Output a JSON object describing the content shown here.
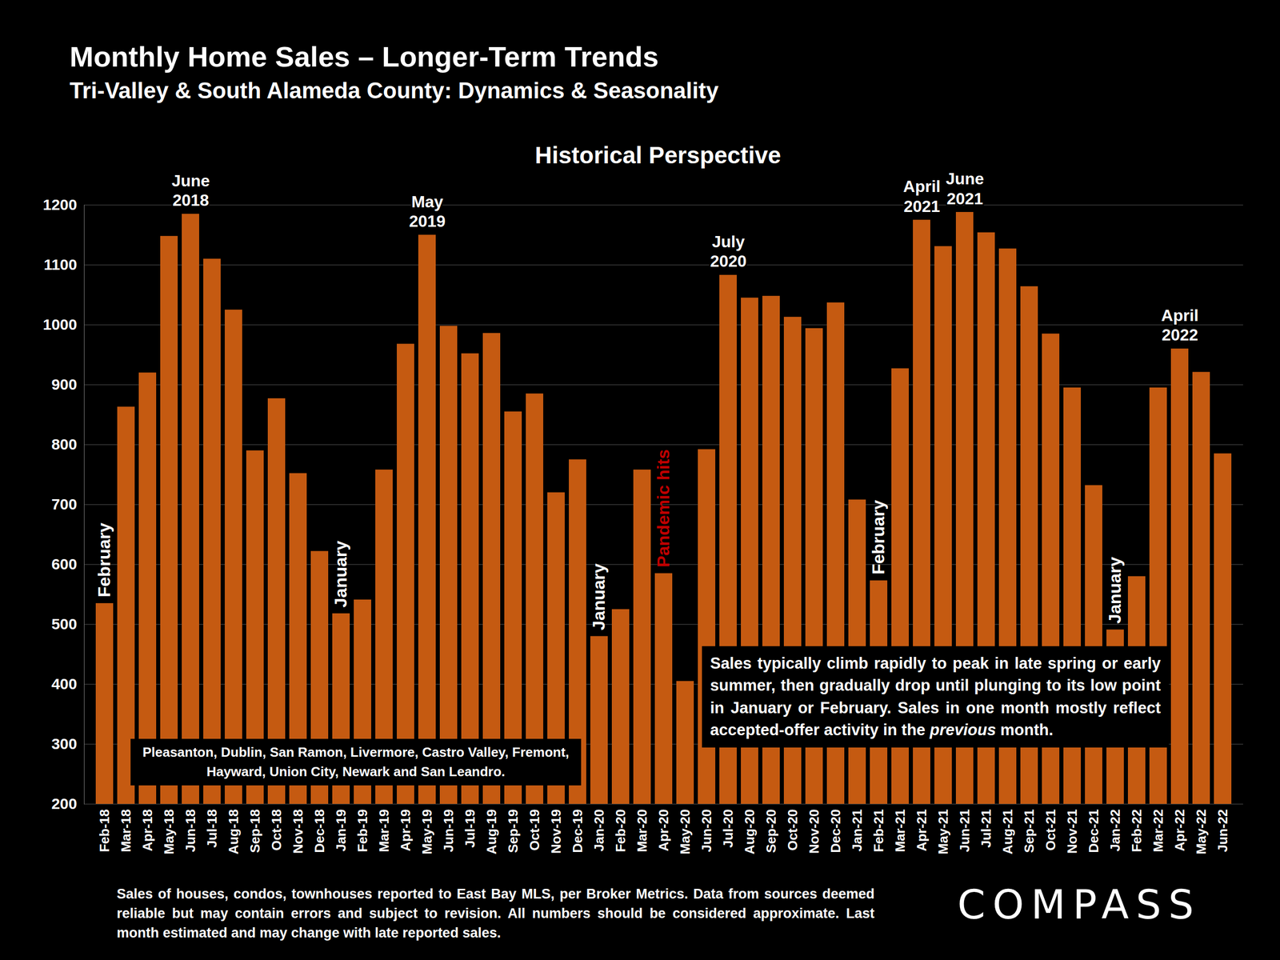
{
  "chart_data": {
    "type": "bar",
    "title": "Monthly Home Sales – Longer-Term Trends",
    "subtitle": "Tri-Valley & South Alameda County: Dynamics & Seasonality",
    "heading": "Historical Perspective",
    "categories": [
      "Feb-18",
      "Mar-18",
      "Apr-18",
      "May-18",
      "Jun-18",
      "Jul-18",
      "Aug-18",
      "Sep-18",
      "Oct-18",
      "Nov-18",
      "Dec-18",
      "Jan-19",
      "Feb-19",
      "Mar-19",
      "Apr-19",
      "May-19",
      "Jun-19",
      "Jul-19",
      "Aug-19",
      "Sep-19",
      "Oct-19",
      "Nov-19",
      "Dec-19",
      "Jan-20",
      "Feb-20",
      "Mar-20",
      "Apr-20",
      "May-20",
      "Jun-20",
      "Jul-20",
      "Aug-20",
      "Sep-20",
      "Oct-20",
      "Nov-20",
      "Dec-20",
      "Jan-21",
      "Feb-21",
      "Mar-21",
      "Apr-21",
      "May-21",
      "Jun-21",
      "Jul-21",
      "Aug-21",
      "Sep-21",
      "Oct-21",
      "Nov-21",
      "Dec-21",
      "Jan-22",
      "Feb-22",
      "Mar-22",
      "Apr-22",
      "May-22",
      "Jun-22"
    ],
    "values": [
      535,
      863,
      920,
      1148,
      1185,
      1110,
      1025,
      790,
      877,
      752,
      622,
      518,
      541,
      758,
      968,
      1150,
      998,
      952,
      986,
      855,
      885,
      720,
      775,
      480,
      525,
      758,
      585,
      405,
      792,
      1083,
      1045,
      1048,
      1013,
      994,
      1037,
      708,
      573,
      927,
      1175,
      1131,
      1188,
      1154,
      1127,
      1064,
      985,
      895,
      732,
      491,
      580,
      895,
      960,
      921,
      785
    ],
    "color": "#c55a11",
    "ylim": [
      200,
      1200
    ],
    "yticks": [
      200,
      300,
      400,
      500,
      600,
      700,
      800,
      900,
      1000,
      1100,
      1200
    ],
    "grid": true,
    "annotations": [
      {
        "text": "June\n2018",
        "category": "Jun-18"
      },
      {
        "text": "May\n2019",
        "category": "May-19"
      },
      {
        "text": "July\n2020",
        "category": "Jul-20"
      },
      {
        "text": "April\n2021",
        "category": "Apr-21"
      },
      {
        "text": "June\n2021",
        "category": "Jun-21"
      },
      {
        "text": "April\n2022",
        "category": "Apr-22"
      }
    ],
    "month_notes": [
      {
        "text": "February",
        "category": "Feb-18",
        "color": "#ffffff"
      },
      {
        "text": "January",
        "category": "Jan-19",
        "color": "#ffffff"
      },
      {
        "text": "January",
        "category": "Jan-20",
        "color": "#ffffff"
      },
      {
        "text": "Pandemic hits",
        "category": "Apr-20",
        "color": "#c00000"
      },
      {
        "text": "February",
        "category": "Feb-21",
        "color": "#ffffff"
      },
      {
        "text": "January",
        "category": "Jan-22",
        "color": "#ffffff"
      }
    ],
    "regions_note": "Pleasanton, Dublin, San Ramon, Livermore, Castro Valley, Fremont, Hayward, Union City, Newark and San Leandro.",
    "description": [
      {
        "text": "Sales typically climb rapidly to peak in late spring or early summer, then gradually drop until plunging to its low point in January or February. Sales in one month mostly reflect accepted-offer activity in the "
      },
      {
        "text": "previous",
        "italic": true
      },
      {
        "text": " month."
      }
    ],
    "footnote": "Sales of houses, condos, townhouses reported to East Bay MLS, per Broker Metrics. Data from sources deemed reliable but may contain errors and subject to revision. All numbers should be considered approximate.  Last month estimated and may change with late reported sales.",
    "logo": "COMPASS"
  }
}
